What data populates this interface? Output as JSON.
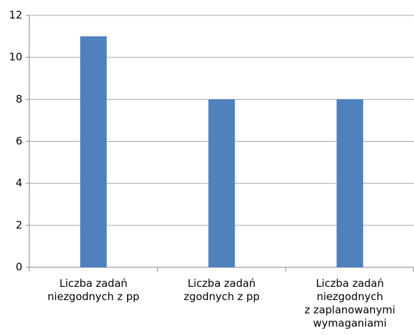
{
  "chart_data": {
    "type": "bar",
    "categories": [
      "Liczba zadań\nniezgodnych z pp",
      "Liczba zadań\nzgodnych z pp",
      "Liczba zadań\nniezgodnych\nz zaplanowanymi\nwymaganiami"
    ],
    "values": [
      11,
      8,
      8
    ],
    "color": "#4f81bd",
    "ylim": [
      0,
      12
    ],
    "yticks": [
      0,
      2,
      4,
      6,
      8,
      10,
      12
    ],
    "grid": true
  }
}
